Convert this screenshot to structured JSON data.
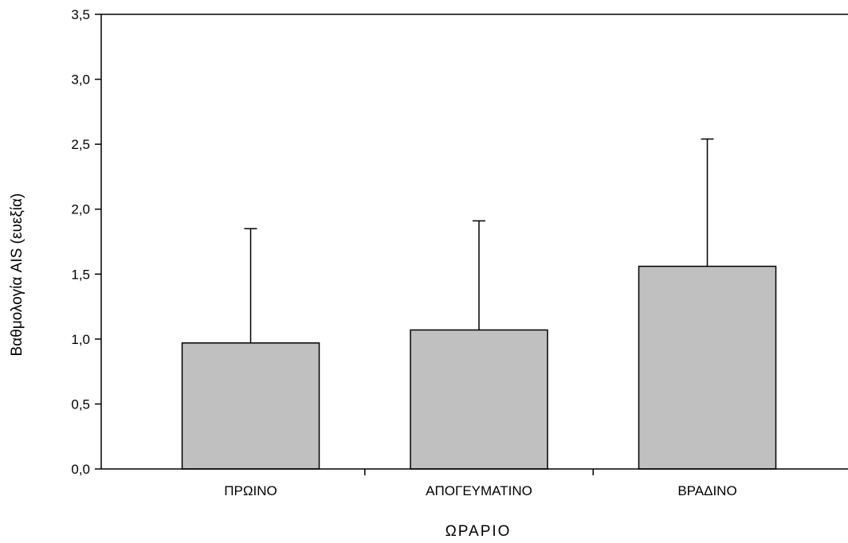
{
  "chart_data": {
    "type": "bar",
    "xlabel": "ΩΡΑΡΙΟ",
    "ylabel": "Βαθμολογία AIS (ευεξία)",
    "categories": [
      "ΠΡΩΙΝΟ",
      "ΑΠΟΓΕΥΜΑΤΙΝΟ",
      "ΒΡΑΔΙΝΟ"
    ],
    "values": [
      0.97,
      1.07,
      1.56
    ],
    "error_high": [
      1.85,
      1.91,
      2.54
    ],
    "ylim": [
      0,
      3.5
    ],
    "yticks": [
      "0,0",
      "0,5",
      "1,0",
      "1,5",
      "2,0",
      "2,5",
      "3,0",
      "3,5"
    ],
    "grid": false,
    "bar_color": "#c0c0c0",
    "edge_color": "#000000"
  }
}
